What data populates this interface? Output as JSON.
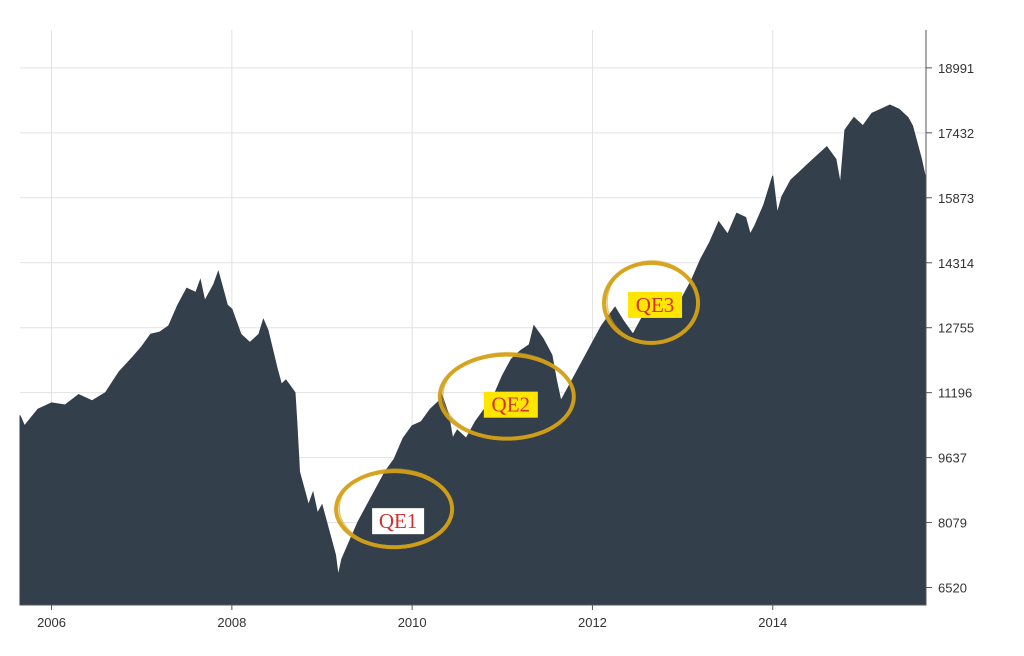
{
  "chart_data": {
    "type": "area",
    "title": "",
    "xlabel": "",
    "ylabel": "",
    "xlim": [
      2005.65,
      2015.7
    ],
    "ylim": [
      6100,
      19900
    ],
    "grid": true,
    "x_ticks": [
      2006,
      2008,
      2010,
      2012,
      2014
    ],
    "x_tick_labels": [
      "2006",
      "2008",
      "2010",
      "2012",
      "2014"
    ],
    "y_ticks": [
      6520,
      8079,
      9637,
      11196,
      12755,
      14314,
      15873,
      17432,
      18991
    ],
    "y_tick_labels": [
      "6520",
      "8079",
      "9637",
      "11196",
      "12755",
      "14314",
      "15873",
      "17432",
      "18991"
    ],
    "series": [
      {
        "color": "#333f4a",
        "points": [
          [
            2005.65,
            10650
          ],
          [
            2005.7,
            10400
          ],
          [
            2005.85,
            10800
          ],
          [
            2006.0,
            10950
          ],
          [
            2006.15,
            10900
          ],
          [
            2006.3,
            11150
          ],
          [
            2006.45,
            11000
          ],
          [
            2006.6,
            11200
          ],
          [
            2006.75,
            11700
          ],
          [
            2006.9,
            12050
          ],
          [
            2007.0,
            12300
          ],
          [
            2007.1,
            12600
          ],
          [
            2007.2,
            12650
          ],
          [
            2007.3,
            12800
          ],
          [
            2007.4,
            13300
          ],
          [
            2007.5,
            13700
          ],
          [
            2007.6,
            13600
          ],
          [
            2007.65,
            13900
          ],
          [
            2007.7,
            13400
          ],
          [
            2007.8,
            13800
          ],
          [
            2007.85,
            14100
          ],
          [
            2007.9,
            13700
          ],
          [
            2007.95,
            13300
          ],
          [
            2008.0,
            13200
          ],
          [
            2008.1,
            12600
          ],
          [
            2008.2,
            12400
          ],
          [
            2008.3,
            12600
          ],
          [
            2008.35,
            12950
          ],
          [
            2008.4,
            12700
          ],
          [
            2008.5,
            11800
          ],
          [
            2008.55,
            11400
          ],
          [
            2008.6,
            11500
          ],
          [
            2008.7,
            11200
          ],
          [
            2008.72,
            10500
          ],
          [
            2008.75,
            9300
          ],
          [
            2008.8,
            8900
          ],
          [
            2008.85,
            8500
          ],
          [
            2008.9,
            8800
          ],
          [
            2008.95,
            8300
          ],
          [
            2009.0,
            8500
          ],
          [
            2009.1,
            7700
          ],
          [
            2009.15,
            7300
          ],
          [
            2009.18,
            6800
          ],
          [
            2009.22,
            7200
          ],
          [
            2009.3,
            7600
          ],
          [
            2009.4,
            8100
          ],
          [
            2009.5,
            8500
          ],
          [
            2009.6,
            8900
          ],
          [
            2009.7,
            9300
          ],
          [
            2009.8,
            9600
          ],
          [
            2009.9,
            10100
          ],
          [
            2010.0,
            10400
          ],
          [
            2010.1,
            10500
          ],
          [
            2010.2,
            10800
          ],
          [
            2010.3,
            11000
          ],
          [
            2010.32,
            11200
          ],
          [
            2010.4,
            10700
          ],
          [
            2010.45,
            10100
          ],
          [
            2010.5,
            10300
          ],
          [
            2010.6,
            10100
          ],
          [
            2010.7,
            10500
          ],
          [
            2010.8,
            10800
          ],
          [
            2010.9,
            11100
          ],
          [
            2011.0,
            11600
          ],
          [
            2011.1,
            12000
          ],
          [
            2011.2,
            12200
          ],
          [
            2011.3,
            12350
          ],
          [
            2011.35,
            12800
          ],
          [
            2011.45,
            12500
          ],
          [
            2011.55,
            12100
          ],
          [
            2011.6,
            11500
          ],
          [
            2011.65,
            11000
          ],
          [
            2011.7,
            11200
          ],
          [
            2011.8,
            11600
          ],
          [
            2011.9,
            12000
          ],
          [
            2012.0,
            12400
          ],
          [
            2012.1,
            12800
          ],
          [
            2012.2,
            13100
          ],
          [
            2012.25,
            13250
          ],
          [
            2012.35,
            12900
          ],
          [
            2012.45,
            12600
          ],
          [
            2012.55,
            13000
          ],
          [
            2012.65,
            13100
          ],
          [
            2012.7,
            13500
          ],
          [
            2012.8,
            13300
          ],
          [
            2012.9,
            13100
          ],
          [
            2013.0,
            13500
          ],
          [
            2013.1,
            13900
          ],
          [
            2013.2,
            14400
          ],
          [
            2013.3,
            14800
          ],
          [
            2013.4,
            15300
          ],
          [
            2013.5,
            15000
          ],
          [
            2013.6,
            15500
          ],
          [
            2013.7,
            15400
          ],
          [
            2013.75,
            15000
          ],
          [
            2013.8,
            15200
          ],
          [
            2013.9,
            15700
          ],
          [
            2014.0,
            16400
          ],
          [
            2014.05,
            15500
          ],
          [
            2014.1,
            15900
          ],
          [
            2014.2,
            16300
          ],
          [
            2014.3,
            16500
          ],
          [
            2014.4,
            16700
          ],
          [
            2014.5,
            16900
          ],
          [
            2014.6,
            17100
          ],
          [
            2014.7,
            16800
          ],
          [
            2014.75,
            16200
          ],
          [
            2014.8,
            17500
          ],
          [
            2014.9,
            17800
          ],
          [
            2015.0,
            17600
          ],
          [
            2015.1,
            17900
          ],
          [
            2015.2,
            18000
          ],
          [
            2015.3,
            18100
          ],
          [
            2015.4,
            18000
          ],
          [
            2015.5,
            17800
          ],
          [
            2015.55,
            17600
          ],
          [
            2015.6,
            17200
          ],
          [
            2015.65,
            16800
          ],
          [
            2015.7,
            16300
          ]
        ]
      }
    ],
    "annotations": [
      {
        "text": "QE1",
        "x": 2009.8,
        "y": 8400,
        "label_bg": "#ffffff",
        "text_color": "#d32f2f",
        "ring_color": "#d4a017"
      },
      {
        "text": "QE2",
        "x": 2011.05,
        "y": 11100,
        "label_bg": "#ffe600",
        "text_color": "#d32f2f",
        "ring_color": "#d4a017"
      },
      {
        "text": "QE3",
        "x": 2012.65,
        "y": 13350,
        "label_bg": "#ffe600",
        "text_color": "#d32f2f",
        "ring_color": "#d4a017"
      }
    ]
  }
}
